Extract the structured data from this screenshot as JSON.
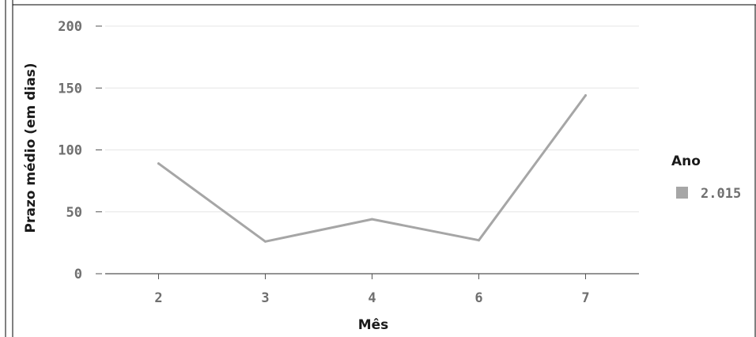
{
  "chart_data": {
    "type": "line",
    "categories": [
      "2",
      "3",
      "4",
      "6",
      "7"
    ],
    "series": [
      {
        "name": "2.015",
        "values": [
          89,
          26,
          44,
          27,
          144
        ]
      }
    ],
    "xlabel": "Mês",
    "ylabel": "Prazo médio (em dias)",
    "ylim": [
      0,
      200
    ],
    "yticks": [
      "0",
      "50",
      "100",
      "150",
      "200"
    ],
    "grid": true,
    "legend": {
      "title": "Ano",
      "position": "right"
    },
    "colors": {
      "series": "#a6a6a6",
      "grid": "#e6e6e6",
      "axis": "#555555",
      "border": "#000000"
    }
  }
}
